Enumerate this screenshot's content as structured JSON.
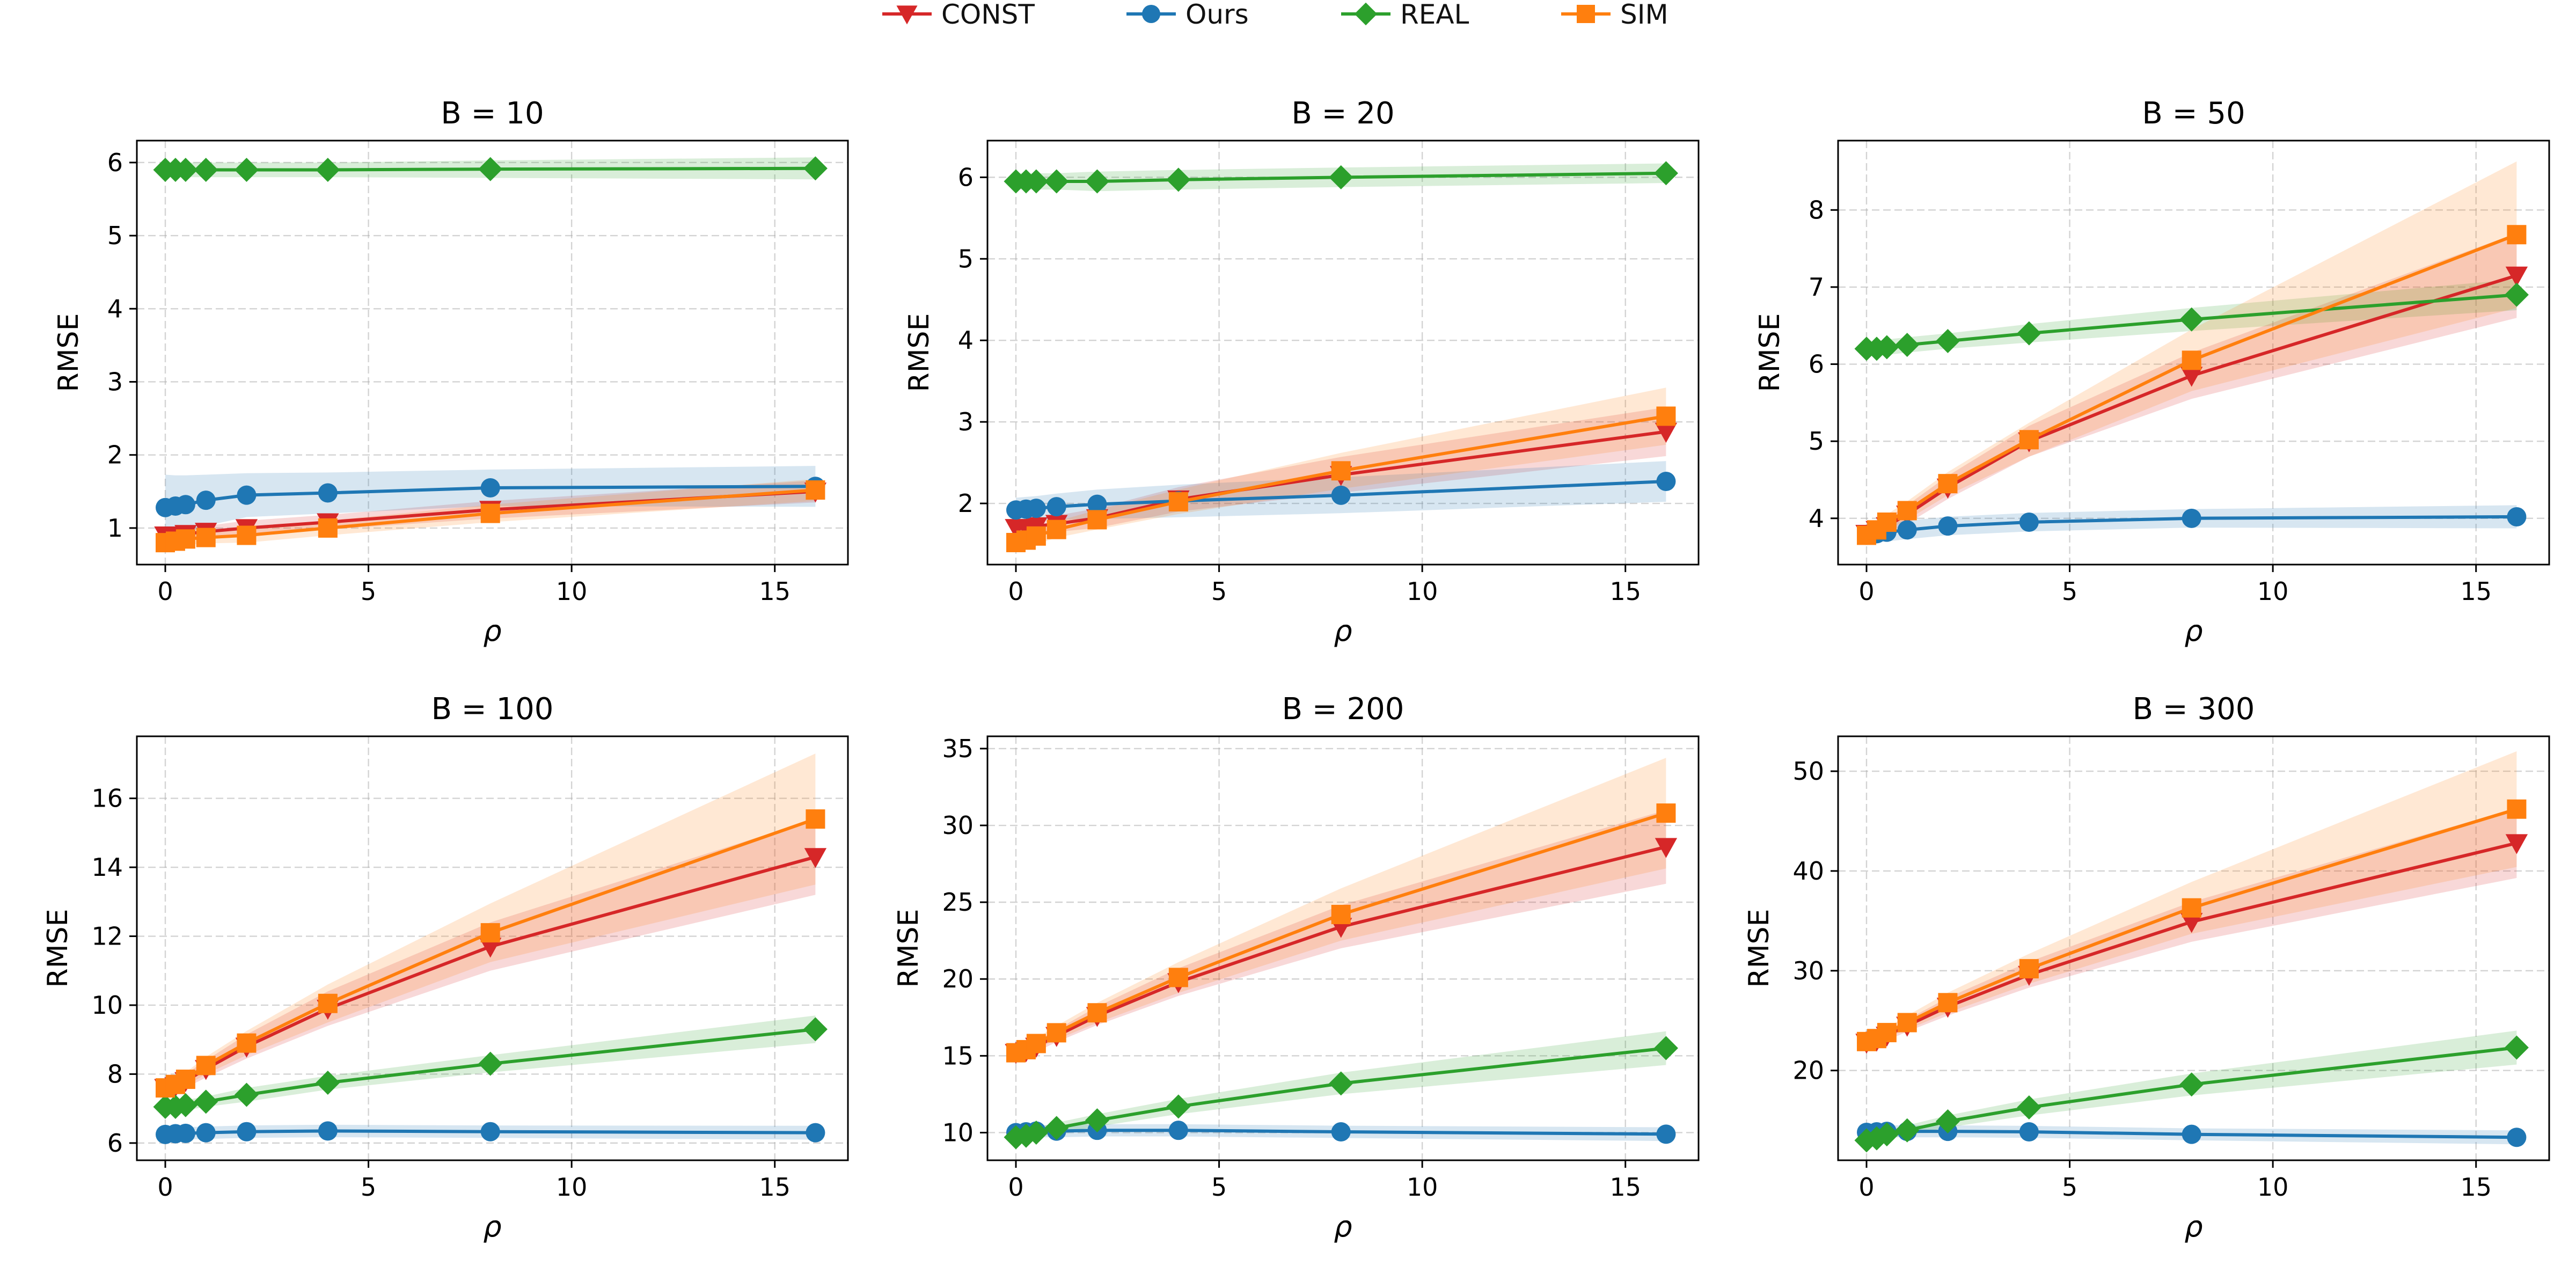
{
  "colors": {
    "CONST": "#d62728",
    "Ours": "#1f77b4",
    "REAL": "#2ca02c",
    "SIM": "#ff7f0e"
  },
  "legend": {
    "items": [
      {
        "name": "CONST",
        "marker": "triangle-down"
      },
      {
        "name": "Ours",
        "marker": "circle"
      },
      {
        "name": "REAL",
        "marker": "diamond"
      },
      {
        "name": "SIM",
        "marker": "square"
      }
    ],
    "placement": "top-center"
  },
  "chart_data": [
    {
      "type": "line",
      "title": "B = 10",
      "xlabel": "ρ",
      "ylabel": "RMSE",
      "x": [
        0,
        0.25,
        0.5,
        1,
        2,
        4,
        8,
        16
      ],
      "xlim": [
        -0.7,
        16.8
      ],
      "ylim": [
        0.5,
        6.3
      ],
      "xticks": [
        0,
        5,
        10,
        15
      ],
      "yticks": [
        1,
        2,
        3,
        4,
        5,
        6
      ],
      "grid": true,
      "series": [
        {
          "name": "CONST",
          "values": [
            0.9,
            0.9,
            0.92,
            0.95,
            1.0,
            1.08,
            1.25,
            1.5
          ],
          "band": [
            0.08,
            0.08,
            0.08,
            0.08,
            0.1,
            0.1,
            0.12,
            0.15
          ]
        },
        {
          "name": "Ours",
          "values": [
            1.28,
            1.3,
            1.32,
            1.38,
            1.45,
            1.48,
            1.55,
            1.57
          ],
          "band": [
            0.45,
            0.42,
            0.4,
            0.35,
            0.3,
            0.28,
            0.25,
            0.28
          ]
        },
        {
          "name": "REAL",
          "values": [
            5.9,
            5.9,
            5.9,
            5.9,
            5.9,
            5.9,
            5.91,
            5.92
          ],
          "band": [
            0.1,
            0.1,
            0.1,
            0.1,
            0.1,
            0.1,
            0.12,
            0.15
          ]
        },
        {
          "name": "SIM",
          "values": [
            0.8,
            0.82,
            0.85,
            0.87,
            0.9,
            1.0,
            1.2,
            1.52
          ],
          "band": [
            0.08,
            0.08,
            0.08,
            0.08,
            0.1,
            0.1,
            0.12,
            0.15
          ]
        }
      ]
    },
    {
      "type": "line",
      "title": "B = 20",
      "xlabel": "ρ",
      "ylabel": "RMSE",
      "x": [
        0,
        0.25,
        0.5,
        1,
        2,
        4,
        8,
        16
      ],
      "xlim": [
        -0.7,
        16.8
      ],
      "ylim": [
        1.25,
        6.45
      ],
      "xticks": [
        0,
        5,
        10,
        15
      ],
      "yticks": [
        2,
        3,
        4,
        5,
        6
      ],
      "grid": true,
      "series": [
        {
          "name": "CONST",
          "values": [
            1.7,
            1.7,
            1.72,
            1.75,
            1.82,
            2.05,
            2.35,
            2.88
          ],
          "band": [
            0.1,
            0.1,
            0.1,
            0.1,
            0.12,
            0.15,
            0.22,
            0.3
          ]
        },
        {
          "name": "Ours",
          "values": [
            1.92,
            1.93,
            1.94,
            1.96,
            1.99,
            2.03,
            2.1,
            2.27
          ],
          "band": [
            0.15,
            0.15,
            0.15,
            0.16,
            0.18,
            0.2,
            0.22,
            0.25
          ]
        },
        {
          "name": "REAL",
          "values": [
            5.95,
            5.95,
            5.95,
            5.95,
            5.95,
            5.97,
            6.0,
            6.05
          ],
          "band": [
            0.1,
            0.1,
            0.1,
            0.1,
            0.12,
            0.12,
            0.12,
            0.12
          ]
        },
        {
          "name": "SIM",
          "values": [
            1.52,
            1.55,
            1.6,
            1.68,
            1.8,
            2.02,
            2.4,
            3.07
          ],
          "band": [
            0.1,
            0.1,
            0.1,
            0.1,
            0.12,
            0.15,
            0.22,
            0.35
          ]
        }
      ]
    },
    {
      "type": "line",
      "title": "B = 50",
      "xlabel": "ρ",
      "ylabel": "RMSE",
      "x": [
        0,
        0.25,
        0.5,
        1,
        2,
        4,
        8,
        16
      ],
      "xlim": [
        -0.7,
        16.8
      ],
      "ylim": [
        3.4,
        8.9
      ],
      "xticks": [
        0,
        5,
        10,
        15
      ],
      "yticks": [
        4,
        5,
        6,
        7,
        8
      ],
      "grid": true,
      "series": [
        {
          "name": "CONST",
          "values": [
            3.8,
            3.85,
            3.9,
            4.05,
            4.4,
            5.0,
            5.85,
            7.15
          ],
          "band": [
            0.08,
            0.08,
            0.1,
            0.12,
            0.15,
            0.2,
            0.3,
            0.55
          ]
        },
        {
          "name": "Ours",
          "values": [
            3.78,
            3.8,
            3.82,
            3.85,
            3.9,
            3.95,
            4.0,
            4.02
          ],
          "band": [
            0.12,
            0.12,
            0.12,
            0.12,
            0.12,
            0.12,
            0.12,
            0.15
          ]
        },
        {
          "name": "REAL",
          "values": [
            6.2,
            6.2,
            6.22,
            6.25,
            6.3,
            6.4,
            6.58,
            6.9
          ],
          "band": [
            0.08,
            0.08,
            0.1,
            0.1,
            0.1,
            0.12,
            0.15,
            0.2
          ]
        },
        {
          "name": "SIM",
          "values": [
            3.78,
            3.85,
            3.95,
            4.1,
            4.45,
            5.02,
            6.05,
            7.68
          ],
          "band": [
            0.08,
            0.08,
            0.1,
            0.12,
            0.15,
            0.22,
            0.4,
            0.95
          ]
        }
      ]
    },
    {
      "type": "line",
      "title": "B = 100",
      "xlabel": "ρ",
      "ylabel": "RMSE",
      "x": [
        0,
        0.25,
        0.5,
        1,
        2,
        4,
        8,
        16
      ],
      "xlim": [
        -0.7,
        16.8
      ],
      "ylim": [
        5.5,
        17.8
      ],
      "xticks": [
        0,
        5,
        10,
        15
      ],
      "yticks": [
        6,
        8,
        10,
        12,
        14,
        16
      ],
      "grid": true,
      "series": [
        {
          "name": "CONST",
          "values": [
            7.6,
            7.65,
            7.8,
            8.15,
            8.8,
            9.9,
            11.7,
            14.3
          ],
          "band": [
            0.15,
            0.15,
            0.2,
            0.25,
            0.35,
            0.5,
            0.7,
            1.1
          ]
        },
        {
          "name": "Ours",
          "values": [
            6.25,
            6.27,
            6.28,
            6.3,
            6.33,
            6.35,
            6.33,
            6.3
          ],
          "band": [
            0.18,
            0.18,
            0.18,
            0.18,
            0.18,
            0.18,
            0.18,
            0.2
          ]
        },
        {
          "name": "REAL",
          "values": [
            7.05,
            7.05,
            7.1,
            7.2,
            7.4,
            7.75,
            8.3,
            9.3
          ],
          "band": [
            0.15,
            0.15,
            0.15,
            0.15,
            0.2,
            0.2,
            0.25,
            0.4
          ]
        },
        {
          "name": "SIM",
          "values": [
            7.6,
            7.7,
            7.85,
            8.25,
            8.9,
            10.05,
            12.1,
            15.4
          ],
          "band": [
            0.15,
            0.15,
            0.2,
            0.25,
            0.35,
            0.55,
            0.85,
            1.9
          ]
        }
      ]
    },
    {
      "type": "line",
      "title": "B = 200",
      "xlabel": "ρ",
      "ylabel": "RMSE",
      "x": [
        0,
        0.25,
        0.5,
        1,
        2,
        4,
        8,
        16
      ],
      "xlim": [
        -0.7,
        16.8
      ],
      "ylim": [
        8.2,
        35.8
      ],
      "xticks": [
        0,
        5,
        10,
        15
      ],
      "yticks": [
        10,
        15,
        20,
        25,
        30,
        35
      ],
      "grid": true,
      "series": [
        {
          "name": "CONST",
          "values": [
            15.2,
            15.3,
            15.6,
            16.3,
            17.6,
            19.8,
            23.4,
            28.6
          ],
          "band": [
            0.3,
            0.3,
            0.35,
            0.4,
            0.6,
            0.9,
            1.4,
            2.4
          ]
        },
        {
          "name": "Ours",
          "values": [
            10.0,
            10.05,
            10.1,
            10.1,
            10.15,
            10.15,
            10.05,
            9.9
          ],
          "band": [
            0.4,
            0.4,
            0.4,
            0.4,
            0.4,
            0.4,
            0.4,
            0.45
          ]
        },
        {
          "name": "REAL",
          "values": [
            9.7,
            9.8,
            10.0,
            10.3,
            10.8,
            11.7,
            13.2,
            15.5
          ],
          "band": [
            0.3,
            0.3,
            0.3,
            0.35,
            0.4,
            0.5,
            0.7,
            1.1
          ]
        },
        {
          "name": "SIM",
          "values": [
            15.2,
            15.4,
            15.8,
            16.5,
            17.8,
            20.1,
            24.2,
            30.8
          ],
          "band": [
            0.3,
            0.3,
            0.35,
            0.45,
            0.65,
            1.0,
            1.7,
            3.6
          ]
        }
      ]
    },
    {
      "type": "line",
      "title": "B = 300",
      "xlabel": "ρ",
      "ylabel": "RMSE",
      "x": [
        0,
        0.25,
        0.5,
        1,
        2,
        4,
        8,
        16
      ],
      "xlim": [
        -0.7,
        16.8
      ],
      "ylim": [
        11.0,
        53.5
      ],
      "xticks": [
        0,
        5,
        10,
        15
      ],
      "yticks": [
        20,
        30,
        40,
        50
      ],
      "grid": true,
      "series": [
        {
          "name": "CONST",
          "values": [
            22.8,
            23.0,
            23.5,
            24.5,
            26.4,
            29.6,
            34.9,
            42.8
          ],
          "band": [
            0.4,
            0.4,
            0.5,
            0.6,
            0.9,
            1.3,
            2.0,
            3.5
          ]
        },
        {
          "name": "Ours",
          "values": [
            13.8,
            13.85,
            13.9,
            13.9,
            13.9,
            13.85,
            13.6,
            13.3
          ],
          "band": [
            0.6,
            0.6,
            0.6,
            0.6,
            0.6,
            0.6,
            0.6,
            0.7
          ]
        },
        {
          "name": "REAL",
          "values": [
            13.0,
            13.2,
            13.6,
            14.0,
            14.9,
            16.3,
            18.6,
            22.3
          ],
          "band": [
            0.4,
            0.4,
            0.4,
            0.5,
            0.6,
            0.8,
            1.1,
            1.7
          ]
        },
        {
          "name": "SIM",
          "values": [
            22.9,
            23.2,
            23.8,
            24.8,
            26.8,
            30.2,
            36.3,
            46.2
          ],
          "band": [
            0.4,
            0.4,
            0.5,
            0.7,
            1.0,
            1.5,
            2.6,
            5.8
          ]
        }
      ]
    }
  ]
}
